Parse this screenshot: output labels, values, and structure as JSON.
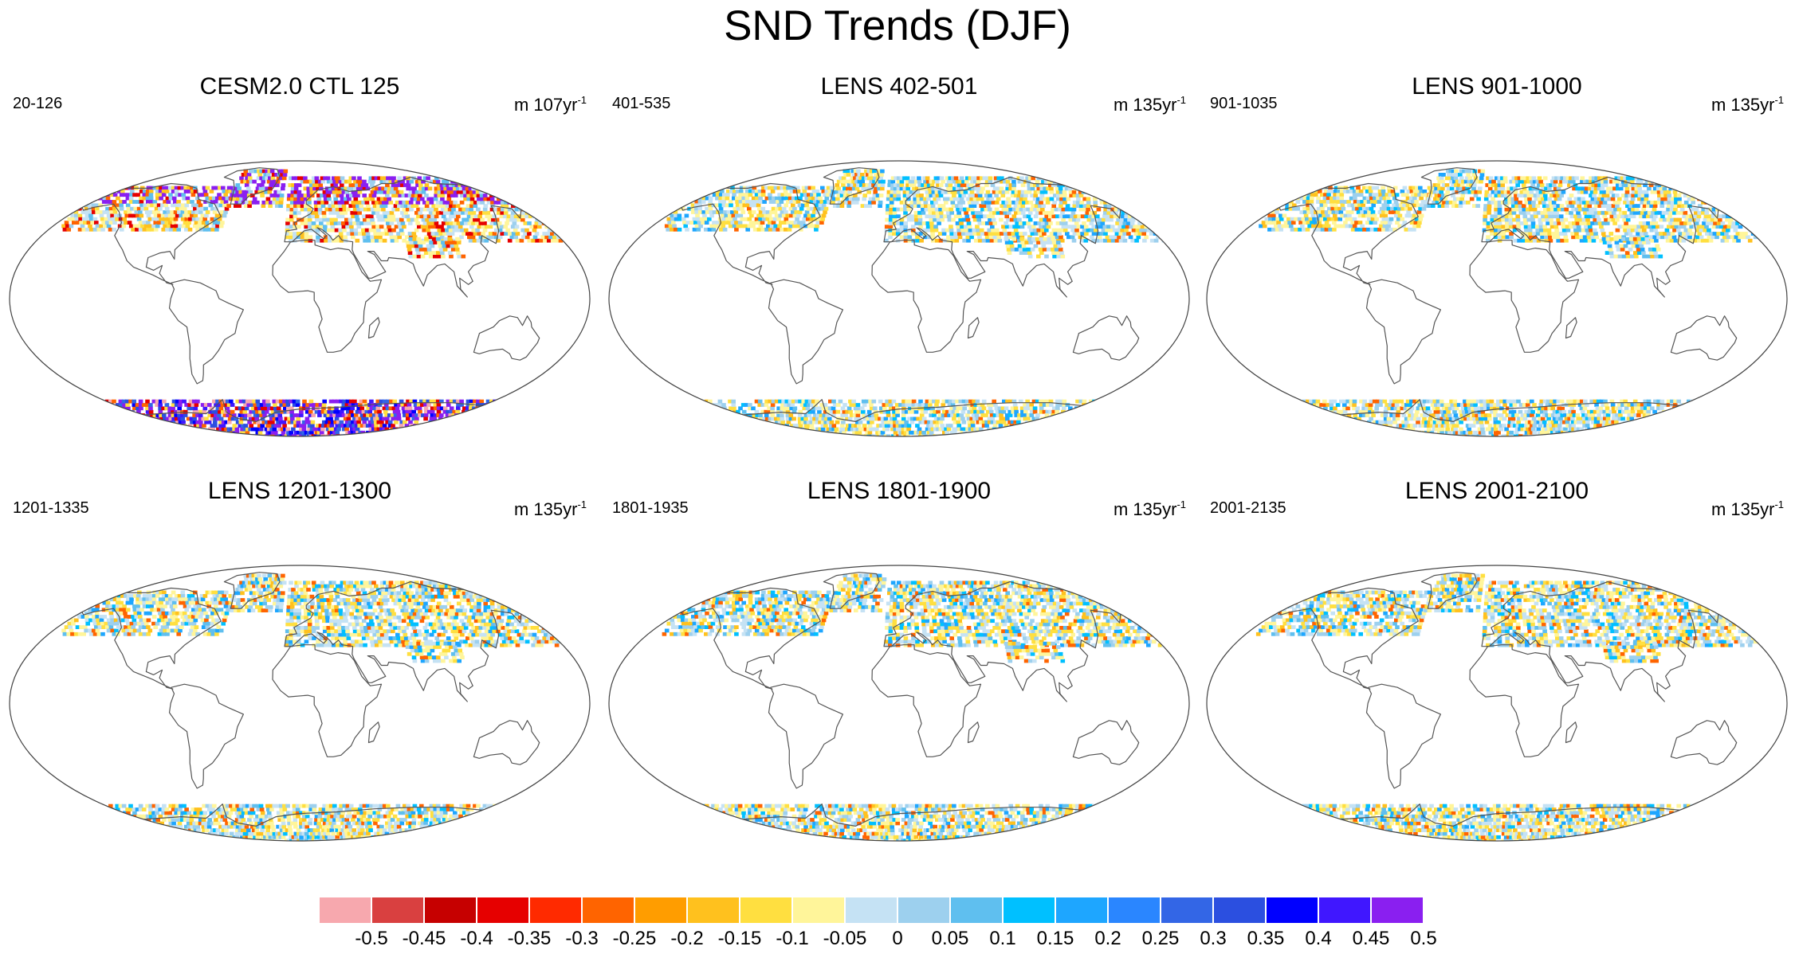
{
  "title": "SND Trends (DJF)",
  "panels": [
    {
      "title": "CESM2.0 CTL 125",
      "years": "20-126",
      "units": "m 107yr",
      "units_exp": "-1",
      "intensity": "high"
    },
    {
      "title": "LENS 402-501",
      "years": "401-535",
      "units": "m 135yr",
      "units_exp": "-1",
      "intensity": "low"
    },
    {
      "title": "LENS 901-1000",
      "years": "901-1035",
      "units": "m 135yr",
      "units_exp": "-1",
      "intensity": "low"
    },
    {
      "title": "LENS 1201-1300",
      "years": "1201-1335",
      "units": "m 135yr",
      "units_exp": "-1",
      "intensity": "low"
    },
    {
      "title": "LENS 1801-1900",
      "years": "1801-1935",
      "units": "m 135yr",
      "units_exp": "-1",
      "intensity": "low"
    },
    {
      "title": "LENS 2001-2100",
      "years": "2001-2135",
      "units": "m 135yr",
      "units_exp": "-1",
      "intensity": "low"
    }
  ],
  "colorbar": {
    "labels": [
      "-0.5",
      "-0.45",
      "-0.4",
      "-0.35",
      "-0.3",
      "-0.25",
      "-0.2",
      "-0.15",
      "-0.1",
      "-0.05",
      "0",
      "0.05",
      "0.1",
      "0.15",
      "0.2",
      "0.25",
      "0.3",
      "0.35",
      "0.4",
      "0.45",
      "0.5"
    ],
    "colors": [
      "#f7a8ae",
      "#d94040",
      "#c60000",
      "#e60000",
      "#ff2a00",
      "#ff6400",
      "#ff9d00",
      "#ffc11e",
      "#ffdf40",
      "#fff59a",
      "#c5e2f4",
      "#9dd0ee",
      "#5fbfef",
      "#00c0ff",
      "#1ea6ff",
      "#2a86ff",
      "#3366e6",
      "#2b4fe0",
      "#0000ff",
      "#4017ff",
      "#8a1ff0"
    ]
  }
}
